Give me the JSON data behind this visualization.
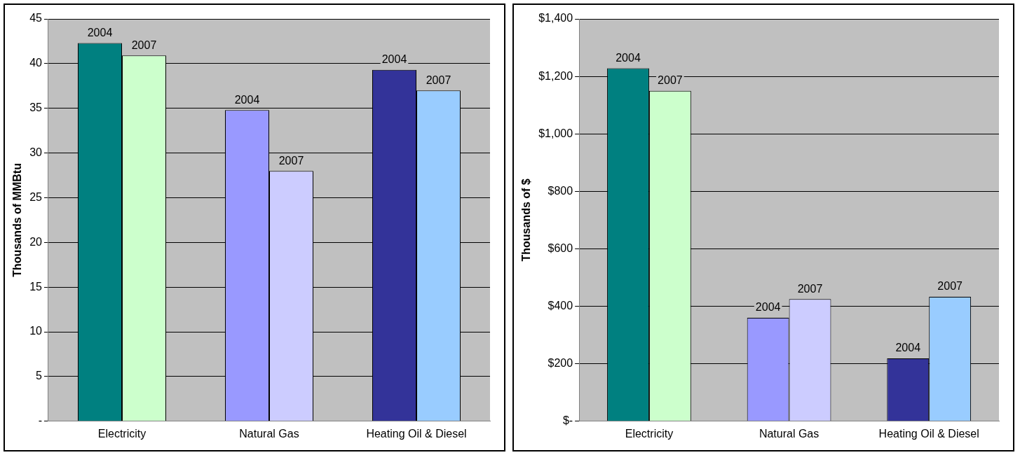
{
  "chart_data": [
    {
      "type": "bar",
      "ylabel": "Thousands of MMBtu",
      "categories": [
        "Electricity",
        "Natural Gas",
        "Heating Oil & Diesel"
      ],
      "ylim": [
        0,
        45
      ],
      "yticks": [
        {
          "value": 0,
          "label": "-"
        },
        5,
        10,
        15,
        20,
        25,
        30,
        35,
        40,
        45
      ],
      "grid": "y",
      "series": [
        {
          "name": "2004",
          "colors": [
            "#008080",
            "#9999ff",
            "#333399"
          ],
          "values": [
            42.3,
            34.8,
            39.3
          ]
        },
        {
          "name": "2007",
          "colors": [
            "#ccffcc",
            "#ccccff",
            "#99ccff"
          ],
          "values": [
            40.9,
            28,
            37
          ]
        }
      ]
    },
    {
      "type": "bar",
      "ylabel": "Thousands of $",
      "categories": [
        "Electricity",
        "Natural Gas",
        "Heating Oil & Diesel"
      ],
      "ylim": [
        0,
        1400
      ],
      "yticks": [
        {
          "value": 0,
          "label": "$-"
        },
        {
          "value": 200,
          "label": "$200"
        },
        {
          "value": 400,
          "label": "$400"
        },
        {
          "value": 600,
          "label": "$600"
        },
        {
          "value": 800,
          "label": "$800"
        },
        {
          "value": 1000,
          "label": "$1,000"
        },
        {
          "value": 1200,
          "label": "$1,200"
        },
        {
          "value": 1400,
          "label": "$1,400"
        }
      ],
      "grid": "y",
      "series": [
        {
          "name": "2004",
          "colors": [
            "#008080",
            "#9999ff",
            "#333399"
          ],
          "values": [
            1228,
            360,
            219
          ]
        },
        {
          "name": "2007",
          "colors": [
            "#ccffcc",
            "#ccccff",
            "#99ccff"
          ],
          "values": [
            1150,
            425,
            433
          ]
        }
      ]
    }
  ]
}
